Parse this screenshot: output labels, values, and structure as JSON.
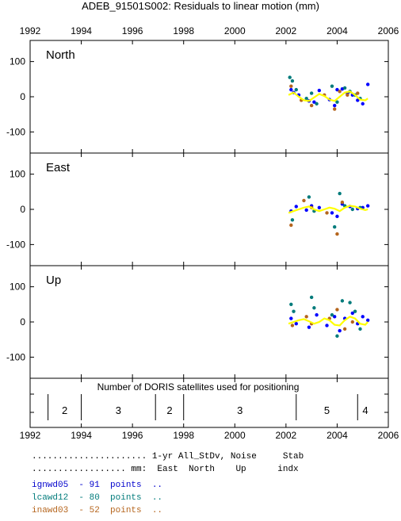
{
  "chart_data": {
    "type": "scatter",
    "title": "ADEB_91501S002: Residuals to linear motion (mm)",
    "xlim": [
      1992,
      2006
    ],
    "x_ticks": [
      "1992",
      "1994",
      "1996",
      "1998",
      "2000",
      "2002",
      "2004",
      "2006"
    ],
    "ylim": [
      -160,
      160
    ],
    "y_ticks": [
      "100",
      "0",
      "-100"
    ],
    "panels": [
      {
        "label": "North",
        "series": [
          {
            "name": "ignwd05",
            "color": "#0000ff",
            "x": [
              2002.2,
              2002.3,
              2002.5,
              2002.9,
              2003.1,
              2003.3,
              2003.7,
              2003.9,
              2004.0,
              2004.2,
              2004.4,
              2004.6,
              2004.8,
              2005.0,
              2005.2
            ],
            "y": [
              20,
              12,
              5,
              -12,
              -15,
              18,
              -8,
              -25,
              20,
              22,
              10,
              5,
              -10,
              -20,
              35
            ]
          },
          {
            "name": "lcawd12",
            "color": "#007b7b",
            "x": [
              2002.15,
              2002.25,
              2002.4,
              2002.8,
              2003.0,
              2003.2,
              2003.8,
              2004.0,
              2004.3,
              2004.5,
              2004.7,
              2004.9
            ],
            "y": [
              55,
              45,
              20,
              -5,
              10,
              -20,
              30,
              -15,
              25,
              15,
              5,
              -5
            ]
          },
          {
            "name": "inawd03",
            "color": "#b5651d",
            "x": [
              2002.2,
              2002.6,
              2003.0,
              2003.5,
              2003.9,
              2004.1,
              2004.4,
              2004.8
            ],
            "y": [
              30,
              -10,
              -25,
              5,
              -35,
              15,
              5,
              10
            ]
          }
        ],
        "smooth": {
          "x": [
            2002.1,
            2002.3,
            2002.5,
            2002.7,
            2002.9,
            2003.1,
            2003.3,
            2003.5,
            2003.7,
            2003.9,
            2004.1,
            2004.3,
            2004.5,
            2004.7,
            2004.9,
            2005.1,
            2005.2
          ],
          "y": [
            5,
            12,
            0,
            -10,
            -12,
            -2,
            8,
            2,
            -8,
            -12,
            0,
            12,
            15,
            5,
            -8,
            -10,
            -5
          ]
        }
      },
      {
        "label": "East",
        "series": [
          {
            "name": "ignwd05",
            "color": "#0000ff",
            "x": [
              2002.2,
              2002.4,
              2002.8,
              2003.0,
              2003.3,
              2003.8,
              2004.0,
              2004.2,
              2004.5,
              2004.8,
              2005.0,
              2005.2
            ],
            "y": [
              -5,
              8,
              -2,
              10,
              5,
              -10,
              -20,
              15,
              8,
              2,
              5,
              10
            ]
          },
          {
            "name": "lcawd12",
            "color": "#007b7b",
            "x": [
              2002.25,
              2002.9,
              2003.1,
              2003.9,
              2004.1,
              2004.3,
              2004.6,
              2004.9
            ],
            "y": [
              -30,
              35,
              -5,
              -50,
              45,
              10,
              0,
              5
            ]
          },
          {
            "name": "inawd03",
            "color": "#b5651d",
            "x": [
              2002.2,
              2002.7,
              2003.0,
              2003.6,
              2004.0,
              2004.2
            ],
            "y": [
              -45,
              25,
              5,
              -10,
              -70,
              20
            ]
          }
        ],
        "smooth": {
          "x": [
            2002.1,
            2002.3,
            2002.5,
            2002.7,
            2002.9,
            2003.1,
            2003.3,
            2003.5,
            2003.7,
            2003.9,
            2004.1,
            2004.3,
            2004.5,
            2004.7,
            2004.9,
            2005.1,
            2005.2
          ],
          "y": [
            -10,
            -5,
            0,
            5,
            8,
            0,
            -5,
            0,
            5,
            2,
            -5,
            5,
            10,
            8,
            2,
            -2,
            0
          ]
        }
      },
      {
        "label": "Up",
        "series": [
          {
            "name": "ignwd05",
            "color": "#0000ff",
            "x": [
              2002.2,
              2002.4,
              2002.9,
              2003.2,
              2003.6,
              2003.9,
              2004.1,
              2004.3,
              2004.6,
              2004.8,
              2005.0,
              2005.2
            ],
            "y": [
              10,
              -5,
              -15,
              20,
              -10,
              15,
              -25,
              10,
              25,
              -5,
              15,
              5
            ]
          },
          {
            "name": "lcawd12",
            "color": "#007b7b",
            "x": [
              2002.2,
              2002.3,
              2003.0,
              2003.1,
              2003.8,
              2004.0,
              2004.2,
              2004.5,
              2004.7,
              2004.9
            ],
            "y": [
              50,
              30,
              70,
              40,
              20,
              -40,
              60,
              55,
              30,
              -20
            ]
          },
          {
            "name": "inawd03",
            "color": "#b5651d",
            "x": [
              2002.25,
              2002.8,
              2003.0,
              2003.7,
              2004.0,
              2004.3,
              2004.6
            ],
            "y": [
              -10,
              15,
              -5,
              10,
              35,
              -20,
              0
            ]
          }
        ],
        "smooth": {
          "x": [
            2002.1,
            2002.3,
            2002.5,
            2002.7,
            2002.9,
            2003.1,
            2003.3,
            2003.5,
            2003.7,
            2003.9,
            2004.1,
            2004.3,
            2004.5,
            2004.7,
            2004.9,
            2005.1,
            2005.2
          ],
          "y": [
            -5,
            0,
            5,
            8,
            2,
            -5,
            0,
            10,
            5,
            -8,
            -10,
            5,
            15,
            10,
            -5,
            -8,
            0
          ]
        }
      }
    ],
    "satellite_panel": {
      "title": "Number of DORIS satellites used for positioning",
      "boundaries": [
        1992.7,
        1994.0,
        1996.9,
        1998.0,
        2002.4,
        2004.8
      ],
      "counts": [
        {
          "x": 1993.35,
          "value": "2"
        },
        {
          "x": 1995.45,
          "value": "3"
        },
        {
          "x": 1997.45,
          "value": "2"
        },
        {
          "x": 2000.2,
          "value": "3"
        },
        {
          "x": 2003.6,
          "value": "5"
        },
        {
          "x": 2005.1,
          "value": "4"
        }
      ]
    }
  },
  "legend": {
    "header1": "...................... 1-yr All_StDv, Noise     Stab",
    "header2": ".................. mm:  East  North    Up      indx",
    "rows": [
      {
        "text": "ignwd05  - 91  points  ..",
        "color": "#0000cc"
      },
      {
        "text": "lcawd12  - 80  points  ..",
        "color": "#007b7b"
      },
      {
        "text": "inawd03  - 52  points  ..",
        "color": "#b5651d"
      }
    ]
  }
}
